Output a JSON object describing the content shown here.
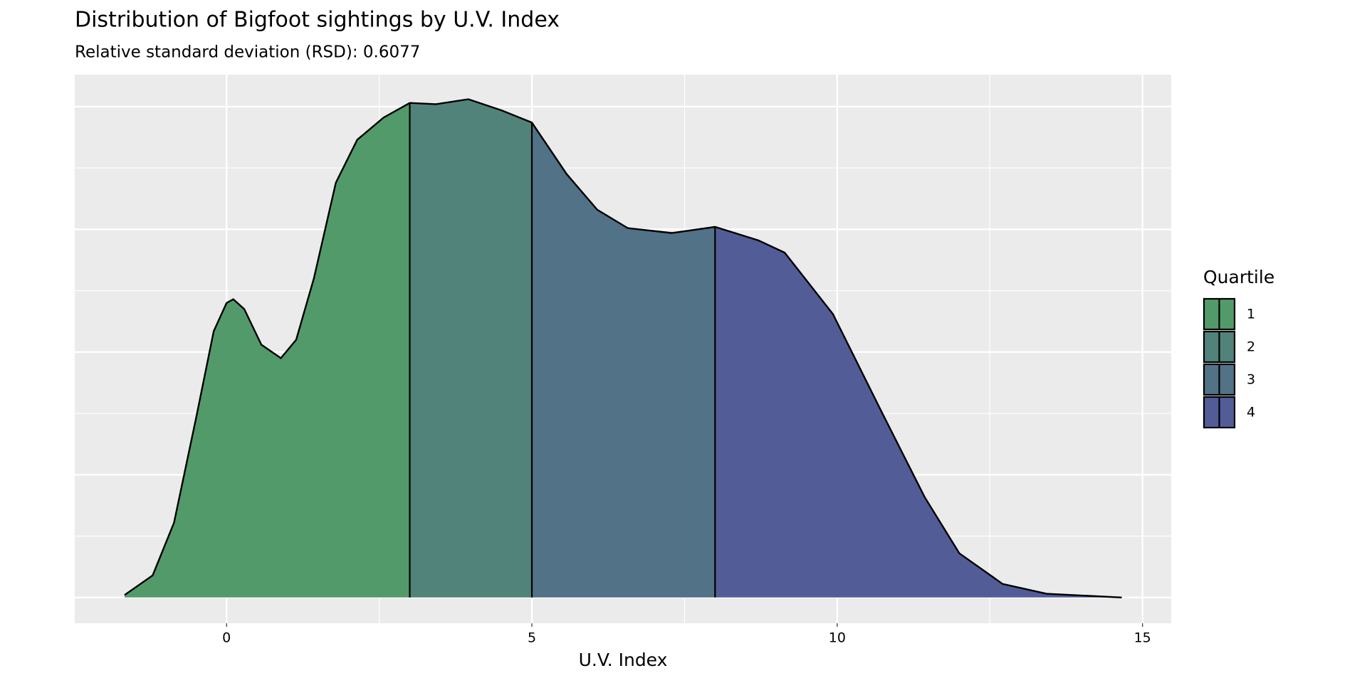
{
  "chart_data": {
    "type": "density",
    "title": "Distribution of Bigfoot sightings by U.V. Index",
    "subtitle": "Relative standard deviation (RSD): 0.6077",
    "x_label": "U.V. Index",
    "x": [
      -1.67,
      -1.21,
      -0.86,
      -0.5,
      -0.21,
      0,
      0.11,
      0.29,
      0.57,
      0.89,
      1.14,
      1.43,
      1.79,
      2.14,
      2.57,
      3.0,
      3.43,
      3.96,
      4.5,
      5.0,
      5.57,
      6.07,
      6.57,
      7.29,
      8.0,
      8.71,
      9.14,
      9.93,
      10.71,
      11.43,
      12.0,
      12.71,
      13.43,
      14.66
    ],
    "density": [
      0.02,
      0.18,
      0.61,
      1.46,
      2.17,
      2.4,
      2.43,
      2.35,
      2.06,
      1.95,
      2.1,
      2.6,
      3.38,
      3.73,
      3.91,
      4.03,
      4.02,
      4.06,
      3.97,
      3.87,
      3.45,
      3.16,
      3.01,
      2.97,
      3.02,
      2.91,
      2.81,
      2.31,
      1.53,
      0.82,
      0.36,
      0.11,
      0.03,
      0.0
    ],
    "quartile_breaks": [
      3,
      5,
      8
    ],
    "legend_title": "Quartile",
    "series": [
      {
        "name": "1",
        "color": "#539a6b"
      },
      {
        "name": "2",
        "color": "#51837a"
      },
      {
        "name": "3",
        "color": "#517287"
      },
      {
        "name": "4",
        "color": "#525d98"
      }
    ],
    "xlim": [
      -2.486,
      15.47
    ],
    "xticks": [
      0,
      5,
      10,
      15
    ],
    "ylim": [
      -0.21,
      4.26
    ],
    "ygrid": [
      0,
      1,
      2,
      3,
      4
    ],
    "grid": true
  }
}
